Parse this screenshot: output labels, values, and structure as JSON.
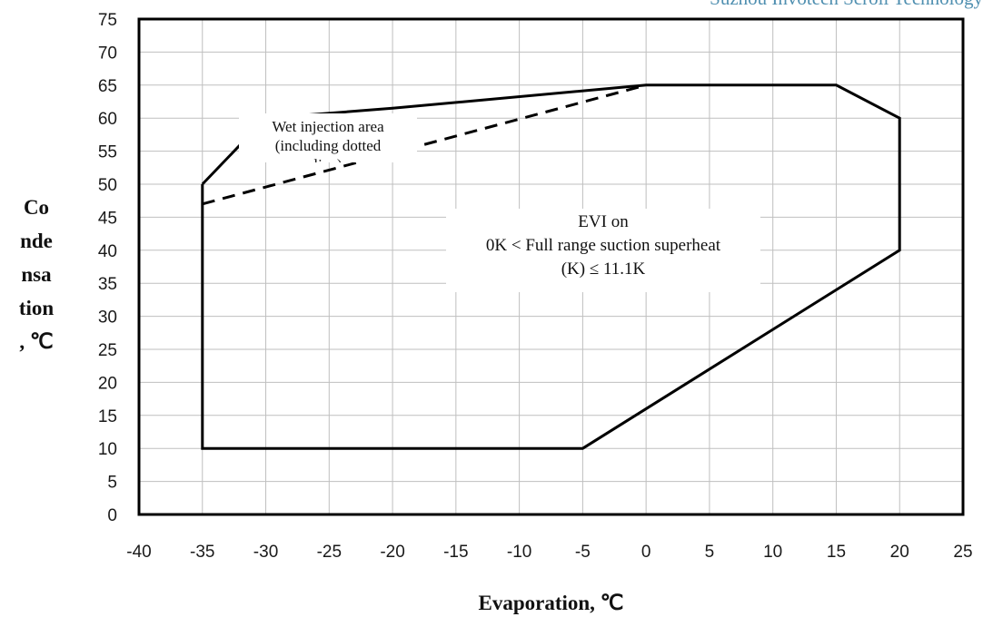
{
  "chart_data": {
    "type": "line",
    "title": "",
    "xlabel": "Evaporation, ℃",
    "ylabel_lines": [
      "Co",
      "nde",
      "nsa",
      "tion",
      ", ℃"
    ],
    "xlim": [
      -40,
      25
    ],
    "ylim": [
      0,
      75
    ],
    "x_ticks": [
      -40,
      -35,
      -30,
      -25,
      -20,
      -15,
      -10,
      -5,
      0,
      5,
      10,
      15,
      20,
      25
    ],
    "y_ticks": [
      0,
      5,
      10,
      15,
      20,
      25,
      30,
      35,
      40,
      45,
      50,
      55,
      60,
      65,
      70,
      75
    ],
    "grid": true,
    "series": [
      {
        "style": "solid",
        "x": [
          -35,
          -30,
          -20,
          0,
          15,
          20,
          20,
          -5,
          -35,
          -35
        ],
        "y": [
          50,
          60,
          61.5,
          65,
          65,
          60,
          40,
          10,
          10,
          50
        ]
      },
      {
        "style": "dashed",
        "x": [
          -35,
          0
        ],
        "y": [
          47,
          65
        ]
      }
    ],
    "annotations": [
      {
        "lines": [
          "Wet  injection area",
          "(including dotted",
          "line)"
        ]
      },
      {
        "lines": [
          "EVI on",
          "0K < Full range suction superheat",
          "(K) ≤ 11.1K"
        ]
      }
    ]
  },
  "watermark": "Suzhou Invotech Scroll Technology",
  "colors": {
    "line": "#000000",
    "grid": "#bfbfbf",
    "brand": "#4f8fb0"
  }
}
